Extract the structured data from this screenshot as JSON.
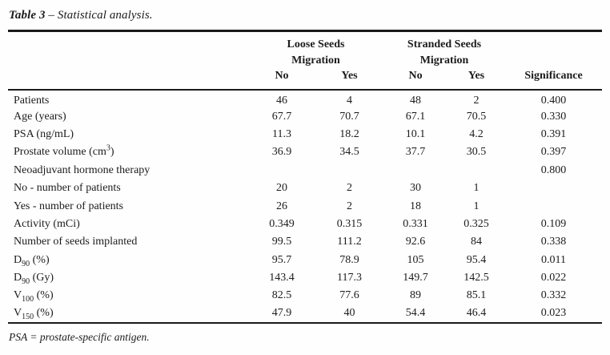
{
  "title": {
    "bold": "Table 3 ",
    "rest": "– Statistical analysis."
  },
  "table": {
    "header": {
      "groups": [
        {
          "line1": "Loose Seeds",
          "line2": "Migration"
        },
        {
          "line1": "Stranded Seeds",
          "line2": "Migration"
        }
      ],
      "subcols": [
        "No",
        "Yes",
        "No",
        "Yes"
      ],
      "significance": "Significance"
    },
    "rows": [
      {
        "label_parts": [
          {
            "t": "Patients"
          }
        ],
        "values": [
          "46",
          "4",
          "48",
          "2",
          "0.400"
        ]
      },
      {
        "label_parts": [
          {
            "t": "Age (years)"
          }
        ],
        "values": [
          "67.7",
          "70.7",
          "67.1",
          "70.5",
          "0.330"
        ]
      },
      {
        "label_parts": [
          {
            "t": "PSA (ng/mL)"
          }
        ],
        "values": [
          "11.3",
          "18.2",
          "10.1",
          "4.2",
          "0.391"
        ]
      },
      {
        "label_parts": [
          {
            "t": "Prostate volume (cm"
          },
          {
            "t": "3",
            "style": "sup"
          },
          {
            "t": ")"
          }
        ],
        "values": [
          "36.9",
          "34.5",
          "37.7",
          "30.5",
          "0.397"
        ]
      },
      {
        "label_parts": [
          {
            "t": "Neoadjuvant hormone therapy"
          }
        ],
        "values": [
          "",
          "",
          "",
          "",
          "0.800"
        ]
      },
      {
        "label_parts": [
          {
            "t": "No - number of patients"
          }
        ],
        "values": [
          "20",
          "2",
          "30",
          "1",
          ""
        ]
      },
      {
        "label_parts": [
          {
            "t": "Yes - number of patients"
          }
        ],
        "values": [
          "26",
          "2",
          "18",
          "1",
          ""
        ]
      },
      {
        "label_parts": [
          {
            "t": "Activity (mCi)"
          }
        ],
        "values": [
          "0.349",
          "0.315",
          "0.331",
          "0.325",
          "0.109"
        ]
      },
      {
        "label_parts": [
          {
            "t": "Number of seeds implanted"
          }
        ],
        "values": [
          "99.5",
          "111.2",
          "92.6",
          "84",
          "0.338"
        ]
      },
      {
        "label_parts": [
          {
            "t": "D"
          },
          {
            "t": "90",
            "style": "sub"
          },
          {
            "t": " (%)"
          }
        ],
        "values": [
          "95.7",
          "78.9",
          "105",
          "95.4",
          "0.011"
        ]
      },
      {
        "label_parts": [
          {
            "t": "D"
          },
          {
            "t": "90",
            "style": "sub"
          },
          {
            "t": " (Gy)"
          }
        ],
        "values": [
          "143.4",
          "117.3",
          "149.7",
          "142.5",
          "0.022"
        ]
      },
      {
        "label_parts": [
          {
            "t": "V"
          },
          {
            "t": "100",
            "style": "sub"
          },
          {
            "t": " (%)"
          }
        ],
        "values": [
          "82.5",
          "77.6",
          "89",
          "85.1",
          "0.332"
        ]
      },
      {
        "label_parts": [
          {
            "t": "V"
          },
          {
            "t": "150",
            "style": "sub"
          },
          {
            "t": " (%)"
          }
        ],
        "values": [
          "47.9",
          "40",
          "54.4",
          "46.4",
          "0.023"
        ]
      }
    ]
  },
  "footnote": {
    "text": "PSA = prostate-specific antigen."
  },
  "colors": {
    "text": "#1c1c1c",
    "rule": "#1b1b1b",
    "background": "#fefefe"
  }
}
